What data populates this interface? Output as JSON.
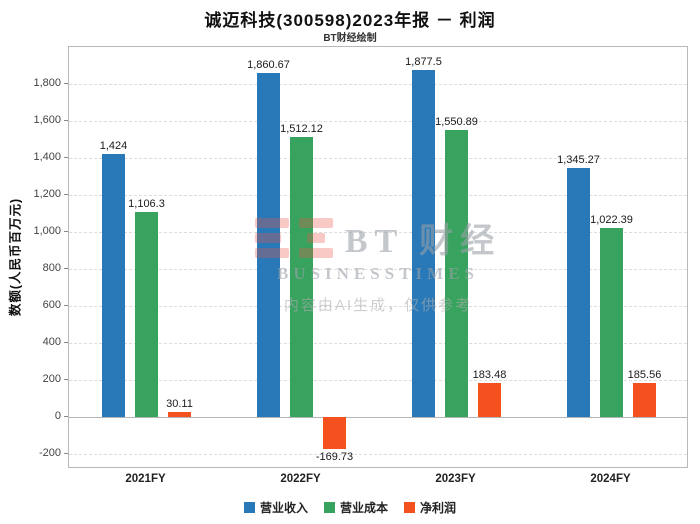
{
  "watermark": {
    "brand": "BT 财经",
    "brand_sub": "BUSINESSTIMES",
    "disclaimer": "内容由AI生成，仅供参考",
    "logo_color": "#e8544a"
  },
  "chart_data": {
    "type": "bar",
    "title": "诚迈科技(300598)2023年报 － 利润",
    "subtitle": "BT财经绘制",
    "xlabel": "",
    "ylabel": "数额(人民币百万元)",
    "categories": [
      "2021FY",
      "2022FY",
      "2023FY",
      "2024FY"
    ],
    "series": [
      {
        "name": "营业收入",
        "color": "#2979b8",
        "values": [
          1424,
          1860.67,
          1877.5,
          1345.27
        ],
        "labels": [
          "1,424",
          "1,860.67",
          "1,877.5",
          "1,345.27"
        ]
      },
      {
        "name": "营业成本",
        "color": "#38a35f",
        "values": [
          1106.3,
          1512.12,
          1550.89,
          1022.39
        ],
        "labels": [
          "1,106.3",
          "1,512.12",
          "1,550.89",
          "1,022.39"
        ]
      },
      {
        "name": "净利润",
        "color": "#f4511e",
        "values": [
          30.11,
          -169.73,
          183.48,
          185.56
        ],
        "labels": [
          "30.11",
          "-169.73",
          "183.48",
          "185.56"
        ]
      }
    ],
    "ylim": [
      -280,
      2000
    ],
    "yticks": [
      -200,
      0,
      200,
      400,
      600,
      800,
      1000,
      1200,
      1400,
      1600,
      1800
    ],
    "ytick_labels": [
      "-200",
      "0",
      "200",
      "400",
      "600",
      "800",
      "1,000",
      "1,200",
      "1,400",
      "1,600",
      "1,800"
    ],
    "grid": true,
    "legend_position": "bottom"
  }
}
